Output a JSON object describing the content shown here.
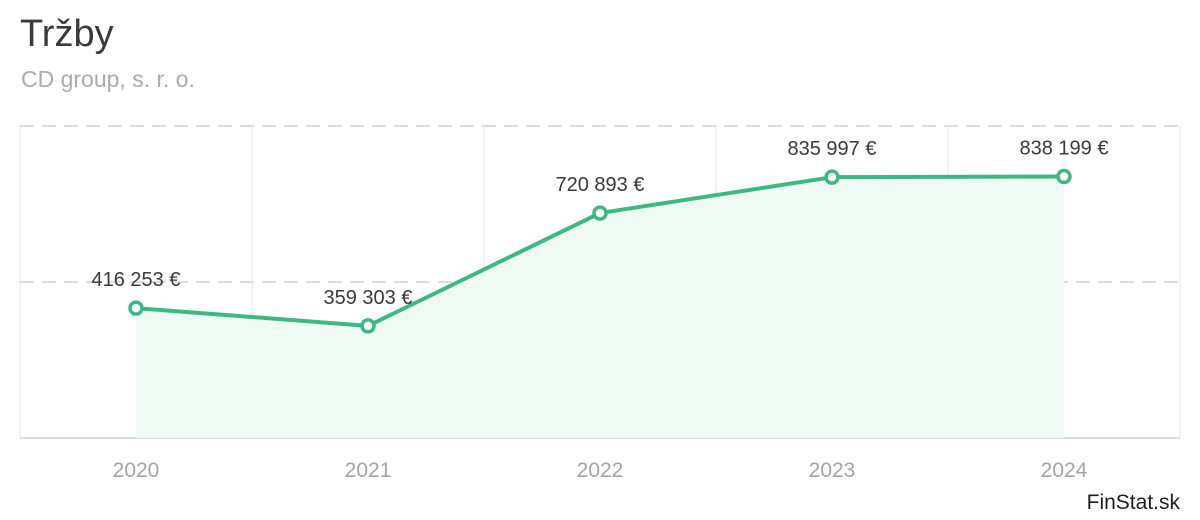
{
  "header": {
    "title": "Tržby",
    "subtitle": "CD group, s. r. o."
  },
  "brand": "FinStat.sk",
  "colors": {
    "line": "#3db882",
    "area": "#effaf4",
    "grid": "#e4e4e4"
  },
  "chart_data": {
    "type": "area",
    "title": "Tržby",
    "subtitle": "CD group, s. r. o.",
    "categories": [
      "2020",
      "2021",
      "2022",
      "2023",
      "2024"
    ],
    "series": [
      {
        "values": [
          416253,
          359303,
          720893,
          835997,
          838199
        ],
        "labels": [
          "416 253 €",
          "359 303 €",
          "720 893 €",
          "835 997 €",
          "838 199 €"
        ]
      }
    ],
    "ylim": [
      0,
      1000000
    ],
    "grid": true,
    "legend": "none"
  }
}
